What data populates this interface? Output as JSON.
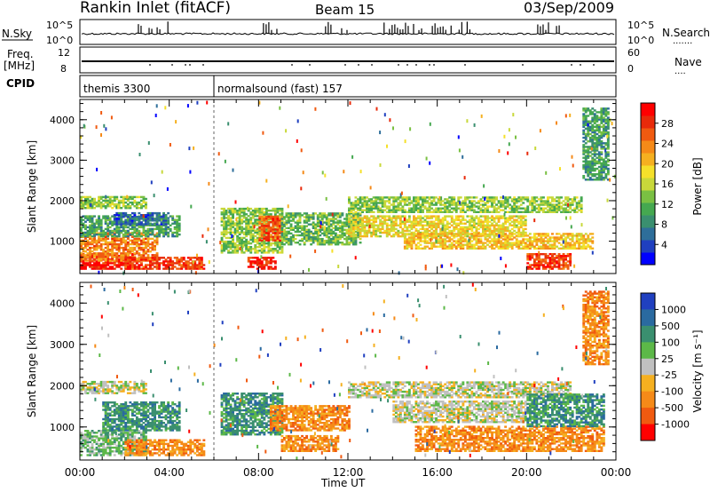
{
  "header": {
    "station": "Rankin Inlet (fitACF)",
    "beam": "Beam 15",
    "date": "03/Sep/2009"
  },
  "panels": {
    "nsky": {
      "left_label": "N.Sky",
      "right_label": "N.Search",
      "tick_top": "10^5",
      "tick_bottom": "10^0",
      "right_tick_top": "10^5",
      "right_tick_bottom": "10^0"
    },
    "freq": {
      "left_label_1": "Freq.",
      "left_label_2": "[MHz]",
      "tick_top": "12",
      "tick_bottom": "8",
      "right_label": "Nave",
      "right_tick_top": "60",
      "right_tick_bottom": "0"
    },
    "cpid": {
      "label": "CPID",
      "modes": [
        {
          "name": "themis 3300",
          "start_hour": 0
        },
        {
          "name": "normalsound (fast) 157",
          "start_hour": 6.0
        }
      ]
    }
  },
  "chart_data": [
    {
      "type": "heatmap",
      "name": "power",
      "xlabel": "Time UT",
      "ylabel": "Slant Range [km]",
      "xlim": [
        0,
        24
      ],
      "ylim": [
        200,
        4500
      ],
      "x_ticks": [
        "00:00",
        "04:00",
        "08:00",
        "12:00",
        "16:00",
        "20:00",
        "00:00"
      ],
      "y_ticks": [
        1000,
        2000,
        3000,
        4000
      ],
      "colorbar": {
        "label": "Power [dB]",
        "ticks": [
          4,
          8,
          12,
          16,
          20,
          24,
          28
        ],
        "range": [
          0,
          32
        ],
        "colors": [
          "#0000ff",
          "#1f3fbf",
          "#2e6e9a",
          "#3a8f6f",
          "#45a850",
          "#7ac043",
          "#c8d83a",
          "#f5e02a",
          "#f5b020",
          "#f58a18",
          "#f05a10",
          "#e82a0a",
          "#ff0000"
        ]
      },
      "regions": [
        {
          "t0": 0.0,
          "t1": 2.5,
          "r0": 300,
          "r1": 700,
          "level": 30
        },
        {
          "t0": 0.0,
          "t1": 3.5,
          "r0": 500,
          "r1": 1200,
          "level": 24
        },
        {
          "t0": 0.0,
          "t1": 4.5,
          "r0": 1100,
          "r1": 1600,
          "level": 10
        },
        {
          "t0": 0.0,
          "t1": 3.0,
          "r0": 1800,
          "r1": 2100,
          "level": 14
        },
        {
          "t0": 1.5,
          "t1": 4.0,
          "r0": 1400,
          "r1": 1700,
          "level": 6
        },
        {
          "t0": 2.0,
          "t1": 5.5,
          "r0": 300,
          "r1": 600,
          "level": 28
        },
        {
          "t0": 6.3,
          "t1": 9.0,
          "r0": 700,
          "r1": 1800,
          "level": 14
        },
        {
          "t0": 7.5,
          "t1": 8.7,
          "r0": 300,
          "r1": 600,
          "level": 30
        },
        {
          "t0": 8.0,
          "t1": 9.0,
          "r0": 1000,
          "r1": 1600,
          "level": 26
        },
        {
          "t0": 9.0,
          "t1": 12.5,
          "r0": 900,
          "r1": 1700,
          "level": 12
        },
        {
          "t0": 12.0,
          "t1": 22.5,
          "r0": 1700,
          "r1": 2100,
          "level": 14
        },
        {
          "t0": 12.0,
          "t1": 20.0,
          "r0": 1100,
          "r1": 1600,
          "level": 18
        },
        {
          "t0": 14.5,
          "t1": 23.0,
          "r0": 800,
          "r1": 1200,
          "level": 20
        },
        {
          "t0": 20.0,
          "t1": 22.0,
          "r0": 300,
          "r1": 700,
          "level": 28
        },
        {
          "t0": 22.5,
          "t1": 23.7,
          "r0": 2500,
          "r1": 4300,
          "level": 10
        }
      ]
    },
    {
      "type": "heatmap",
      "name": "velocity",
      "xlabel": "Time UT",
      "ylabel": "Slant Range [km]",
      "xlim": [
        0,
        24
      ],
      "ylim": [
        200,
        4500
      ],
      "x_ticks": [
        "00:00",
        "04:00",
        "08:00",
        "12:00",
        "16:00",
        "20:00",
        "00:00"
      ],
      "y_ticks": [
        1000,
        2000,
        3000,
        4000
      ],
      "colorbar": {
        "label": "Velocity [m s⁻¹]",
        "ticks": [
          "1000",
          "500",
          "100",
          "25",
          "-25",
          "-100",
          "-500",
          "-1000"
        ],
        "colors": [
          "#2040c0",
          "#2a6aa0",
          "#3a8f6f",
          "#5cb848",
          "#c0c0c0",
          "#f5b020",
          "#f58a18",
          "#f05a10",
          "#ff0000"
        ]
      },
      "regions": [
        {
          "t0": 0.0,
          "t1": 3.0,
          "r0": 300,
          "r1": 900,
          "level": 3
        },
        {
          "t0": 0.0,
          "t1": 3.0,
          "r0": 1800,
          "r1": 2100,
          "level": 4
        },
        {
          "t0": 1.0,
          "t1": 4.5,
          "r0": 900,
          "r1": 1600,
          "level": 2
        },
        {
          "t0": 2.0,
          "t1": 5.5,
          "r0": 300,
          "r1": 700,
          "level": 6
        },
        {
          "t0": 6.3,
          "t1": 9.0,
          "r0": 800,
          "r1": 1800,
          "level": 2
        },
        {
          "t0": 8.5,
          "t1": 12.0,
          "r0": 900,
          "r1": 1500,
          "level": 6
        },
        {
          "t0": 9.0,
          "t1": 11.5,
          "r0": 400,
          "r1": 800,
          "level": 6
        },
        {
          "t0": 12.0,
          "t1": 22.0,
          "r0": 1700,
          "r1": 2100,
          "level": 4
        },
        {
          "t0": 14.0,
          "t1": 20.0,
          "r0": 1100,
          "r1": 1600,
          "level": 4
        },
        {
          "t0": 15.0,
          "t1": 23.5,
          "r0": 400,
          "r1": 1000,
          "level": 6
        },
        {
          "t0": 20.0,
          "t1": 23.5,
          "r0": 1000,
          "r1": 1800,
          "level": 2
        },
        {
          "t0": 22.5,
          "t1": 23.7,
          "r0": 2500,
          "r1": 4300,
          "level": 6
        }
      ]
    }
  ]
}
